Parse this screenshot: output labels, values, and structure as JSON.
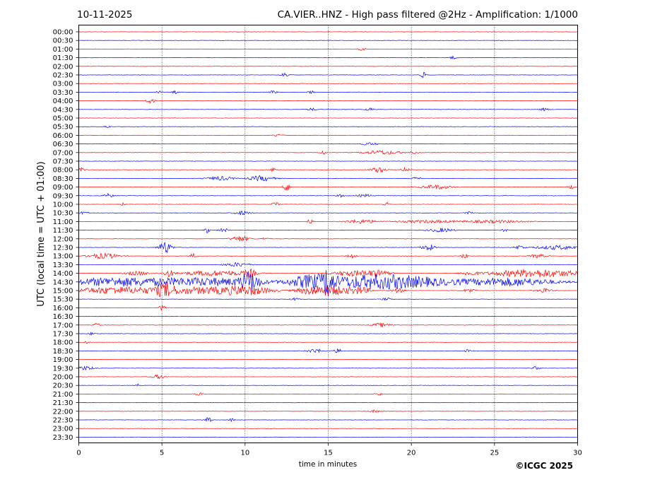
{
  "header": {
    "date": "10-11-2025",
    "title": "CA.VIER..HNZ - High pass filtered @2Hz - Amplification: 1/1000"
  },
  "footer": {
    "copyright": "©ICGC 2025"
  },
  "chart_data": {
    "type": "line",
    "title": "CA.VIER..HNZ - High pass filtered @2Hz - Amplification: 1/1000",
    "xlabel": "time in minutes",
    "ylabel": "UTC (local time = UTC + 01:00)",
    "xlim": [
      0,
      30
    ],
    "x_ticks": [
      0,
      5,
      10,
      15,
      20,
      25,
      30
    ],
    "grid": "vertical dotted lines at every 5 minutes",
    "trace_colors": [
      "#ff0000",
      "#0000ff"
    ],
    "rows": [
      {
        "label": "00:00",
        "events": []
      },
      {
        "label": "00:30",
        "events": []
      },
      {
        "label": "01:00",
        "events": [
          [
            17.0,
            0.25,
            2
          ]
        ]
      },
      {
        "label": "01:30",
        "events": [
          [
            22.5,
            0.3,
            2
          ]
        ]
      },
      {
        "label": "02:00",
        "events": []
      },
      {
        "label": "02:30",
        "events": [
          [
            12.4,
            0.3,
            3
          ],
          [
            20.7,
            0.2,
            4
          ]
        ]
      },
      {
        "label": "03:00",
        "events": []
      },
      {
        "label": "03:30",
        "events": [
          [
            4.8,
            0.2,
            2
          ],
          [
            5.8,
            0.2,
            2
          ],
          [
            11.7,
            0.2,
            3
          ],
          [
            14.0,
            0.2,
            2
          ]
        ]
      },
      {
        "label": "04:00",
        "events": [
          [
            4.3,
            0.25,
            4
          ]
        ]
      },
      {
        "label": "04:30",
        "events": [
          [
            14.0,
            0.3,
            2
          ],
          [
            17.5,
            0.3,
            2
          ],
          [
            28.0,
            0.3,
            2
          ]
        ]
      },
      {
        "label": "05:00",
        "events": []
      },
      {
        "label": "05:30",
        "events": [
          [
            1.7,
            0.2,
            2
          ]
        ]
      },
      {
        "label": "06:00",
        "events": [
          [
            12.0,
            0.3,
            2
          ]
        ]
      },
      {
        "label": "06:30",
        "events": [
          [
            17.5,
            0.5,
            2
          ]
        ]
      },
      {
        "label": "07:00",
        "events": [
          [
            14.7,
            0.2,
            3
          ],
          [
            18.2,
            1.2,
            3
          ],
          [
            20.2,
            0.3,
            2
          ]
        ]
      },
      {
        "label": "07:30",
        "events": []
      },
      {
        "label": "08:00",
        "events": [
          [
            0.2,
            0.2,
            3
          ],
          [
            11.7,
            0.2,
            3
          ],
          [
            18.0,
            0.5,
            4
          ],
          [
            19.6,
            0.3,
            3
          ]
        ]
      },
      {
        "label": "08:30",
        "events": [
          [
            8.5,
            0.8,
            3
          ],
          [
            11.0,
            0.8,
            4
          ],
          [
            20.3,
            0.3,
            2
          ]
        ]
      },
      {
        "label": "09:00",
        "events": [
          [
            12.5,
            0.2,
            7
          ],
          [
            21.5,
            1.0,
            3
          ],
          [
            29.6,
            0.2,
            3
          ]
        ]
      },
      {
        "label": "09:30",
        "events": [
          [
            1.8,
            0.3,
            3
          ],
          [
            15.8,
            0.3,
            2
          ],
          [
            17.2,
            0.5,
            2
          ]
        ]
      },
      {
        "label": "10:00",
        "events": [
          [
            11.8,
            0.2,
            4
          ],
          [
            18.5,
            0.2,
            3
          ],
          [
            2.6,
            0.2,
            2
          ]
        ]
      },
      {
        "label": "10:30",
        "events": [
          [
            0.3,
            0.3,
            2
          ],
          [
            9.8,
            0.5,
            3
          ],
          [
            23.5,
            0.3,
            2
          ]
        ]
      },
      {
        "label": "11:00",
        "events": [
          [
            13.9,
            0.2,
            3
          ],
          [
            17.0,
            1.0,
            3
          ],
          [
            21.0,
            2.0,
            2
          ],
          [
            25.0,
            2.0,
            2
          ]
        ]
      },
      {
        "label": "11:30",
        "events": [
          [
            7.7,
            0.2,
            4
          ],
          [
            8.7,
            0.3,
            3
          ],
          [
            21.8,
            0.8,
            3
          ],
          [
            25.6,
            0.2,
            2
          ]
        ]
      },
      {
        "label": "12:00",
        "events": [
          [
            9.7,
            0.6,
            4
          ],
          [
            11.2,
            0.2,
            2
          ]
        ]
      },
      {
        "label": "12:30",
        "events": [
          [
            5.2,
            0.4,
            9
          ],
          [
            21.0,
            0.4,
            5
          ],
          [
            26.5,
            0.3,
            3
          ],
          [
            28.8,
            1.5,
            3
          ]
        ]
      },
      {
        "label": "13:00",
        "events": [
          [
            1.5,
            1.0,
            4
          ],
          [
            6.9,
            0.2,
            4
          ],
          [
            16.4,
            0.3,
            4
          ],
          [
            23.2,
            0.2,
            4
          ],
          [
            27.6,
            0.5,
            3
          ]
        ]
      },
      {
        "label": "13:30",
        "events": [
          [
            9.5,
            0.8,
            3
          ]
        ]
      },
      {
        "label": "14:00",
        "events": [
          [
            3.5,
            0.8,
            3
          ],
          [
            5.4,
            0.3,
            5
          ],
          [
            8.2,
            2.2,
            4
          ],
          [
            10.3,
            0.4,
            5
          ],
          [
            16.5,
            1.3,
            4
          ],
          [
            18.0,
            0.8,
            4
          ],
          [
            23.5,
            0.5,
            3
          ],
          [
            27.5,
            3.0,
            6
          ]
        ]
      },
      {
        "label": "14:30",
        "events": [
          [
            2.0,
            3.0,
            6
          ],
          [
            7.5,
            4.0,
            6
          ],
          [
            10.3,
            0.6,
            12
          ],
          [
            14.0,
            1.5,
            9
          ],
          [
            15.0,
            0.3,
            16
          ],
          [
            17.5,
            3.0,
            9
          ],
          [
            20.5,
            3.0,
            5
          ],
          [
            26.0,
            3.0,
            6
          ]
        ]
      },
      {
        "label": "15:00",
        "events": [
          [
            2.2,
            3.0,
            5
          ],
          [
            5.2,
            0.6,
            7
          ],
          [
            7.5,
            3.0,
            5
          ],
          [
            10.2,
            1.5,
            5
          ],
          [
            14.0,
            1.0,
            4
          ],
          [
            15.3,
            1.6,
            6
          ],
          [
            17.0,
            0.6,
            4
          ],
          [
            19.2,
            0.4,
            3
          ],
          [
            23.5,
            0.4,
            3
          ],
          [
            28.0,
            0.5,
            3
          ]
        ]
      },
      {
        "label": "15:30",
        "events": [
          [
            13.0,
            0.3,
            2
          ],
          [
            18.5,
            0.3,
            2
          ]
        ]
      },
      {
        "label": "16:00",
        "events": [
          [
            5.0,
            0.2,
            4
          ]
        ]
      },
      {
        "label": "16:30",
        "events": []
      },
      {
        "label": "17:00",
        "events": [
          [
            1.1,
            0.2,
            3
          ],
          [
            18.2,
            0.6,
            3
          ]
        ]
      },
      {
        "label": "17:30",
        "events": [
          [
            0.8,
            0.2,
            2
          ]
        ]
      },
      {
        "label": "18:00",
        "events": [
          [
            0.4,
            0.2,
            2
          ]
        ]
      },
      {
        "label": "18:30",
        "events": [
          [
            14.2,
            0.5,
            3
          ],
          [
            15.6,
            0.3,
            3
          ],
          [
            23.4,
            0.2,
            2
          ]
        ]
      },
      {
        "label": "19:00",
        "events": []
      },
      {
        "label": "19:30",
        "events": [
          [
            0.4,
            0.6,
            3
          ],
          [
            27.5,
            0.2,
            3
          ]
        ]
      },
      {
        "label": "20:00",
        "events": [
          [
            4.8,
            0.4,
            3
          ]
        ]
      },
      {
        "label": "20:30",
        "events": [
          [
            3.5,
            0.2,
            2
          ]
        ]
      },
      {
        "label": "21:00",
        "events": [
          [
            7.2,
            0.3,
            2
          ],
          [
            18.0,
            0.3,
            2
          ]
        ]
      },
      {
        "label": "21:30",
        "events": []
      },
      {
        "label": "22:00",
        "events": [
          [
            17.8,
            0.3,
            2
          ]
        ]
      },
      {
        "label": "22:30",
        "events": [
          [
            7.8,
            0.2,
            5
          ],
          [
            9.2,
            0.2,
            2
          ]
        ]
      },
      {
        "label": "23:00",
        "events": []
      },
      {
        "label": "23:30",
        "events": []
      }
    ]
  }
}
